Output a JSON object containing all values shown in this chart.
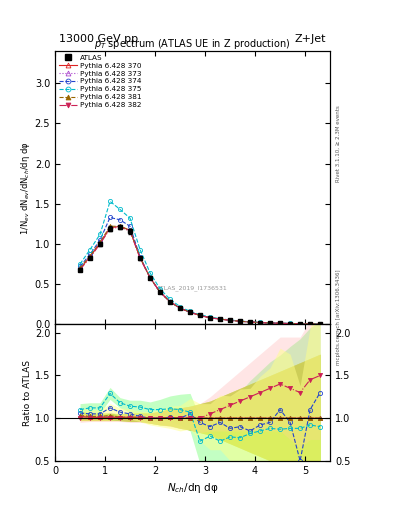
{
  "title_top": "13000 GeV pp",
  "title_right": "Z+Jet",
  "plot_title": "$p_T$ spectrum (ATLAS UE in Z production)",
  "xlabel": "$N_{ch}$/dη dφ",
  "ylabel_main": "1/N$_{ev}$ dN$_{ev}$/dN$_{ch}$/dη dφ",
  "ylabel_ratio": "Ratio to ATLAS",
  "right_label_top": "Rivet 3.1.10, ≥ 2.3M events",
  "right_label_bottom": "mcplots.cern.ch [arXiv:1306.3436]",
  "watermark": "ATLAS_2019_I1736531",
  "xlim": [
    0,
    5.5
  ],
  "ylim_main": [
    0,
    3.4
  ],
  "ylim_ratio": [
    0.5,
    2.1
  ],
  "yticks_main": [
    0,
    0.5,
    1.0,
    1.5,
    2.0,
    2.5,
    3.0
  ],
  "yticks_ratio": [
    0.5,
    1.0,
    1.5,
    2.0
  ],
  "atlas_x": [
    0.5,
    0.7,
    0.9,
    1.1,
    1.3,
    1.5,
    1.7,
    1.9,
    2.1,
    2.3,
    2.5,
    2.7,
    2.9,
    3.1,
    3.3,
    3.5,
    3.7,
    3.9,
    4.1,
    4.3,
    4.5,
    4.7,
    4.9,
    5.1,
    5.3
  ],
  "atlas_y": [
    0.68,
    0.83,
    1.0,
    1.19,
    1.21,
    1.16,
    0.82,
    0.58,
    0.4,
    0.28,
    0.2,
    0.15,
    0.11,
    0.08,
    0.065,
    0.05,
    0.038,
    0.028,
    0.021,
    0.016,
    0.012,
    0.009,
    0.007,
    0.005,
    0.004
  ],
  "atlas_yerr": [
    0.02,
    0.02,
    0.02,
    0.03,
    0.03,
    0.03,
    0.02,
    0.02,
    0.01,
    0.01,
    0.01,
    0.008,
    0.007,
    0.006,
    0.005,
    0.004,
    0.003,
    0.003,
    0.002,
    0.002,
    0.001,
    0.001,
    0.001,
    0.001,
    0.001
  ],
  "series": [
    {
      "label": "Pythia 6.428 370",
      "color": "#dd2222",
      "marker": "^",
      "markersize": 3,
      "linestyle": "-",
      "filled": false,
      "band_color": "#ffff00",
      "band_alpha": 0.6,
      "x": [
        0.5,
        0.7,
        0.9,
        1.1,
        1.3,
        1.5,
        1.7,
        1.9,
        2.1,
        2.3,
        2.5,
        2.7,
        2.9,
        3.1,
        3.3,
        3.5,
        3.7,
        3.9,
        4.1,
        4.3,
        4.5,
        4.7,
        4.9,
        5.1,
        5.3
      ],
      "y": [
        0.69,
        0.84,
        1.01,
        1.2,
        1.22,
        1.17,
        0.83,
        0.58,
        0.4,
        0.28,
        0.2,
        0.15,
        0.11,
        0.08,
        0.065,
        0.05,
        0.038,
        0.028,
        0.021,
        0.016,
        0.012,
        0.009,
        0.007,
        0.005,
        0.004
      ],
      "ratio_y": [
        1.02,
        1.01,
        1.01,
        1.01,
        1.01,
        1.01,
        1.01,
        1.0,
        1.0,
        1.01,
        1.0,
        1.0,
        1.0,
        1.0,
        1.0,
        1.0,
        1.0,
        1.0,
        1.0,
        1.0,
        1.0,
        1.0,
        1.0,
        1.0,
        1.0
      ],
      "ratio_yerr": [
        0.05,
        0.04,
        0.04,
        0.04,
        0.04,
        0.05,
        0.05,
        0.06,
        0.08,
        0.1,
        0.12,
        0.14,
        0.17,
        0.2,
        0.25,
        0.3,
        0.35,
        0.4,
        0.45,
        0.5,
        0.55,
        0.6,
        0.65,
        0.7,
        0.75
      ]
    },
    {
      "label": "Pythia 6.428 373",
      "color": "#aa44cc",
      "marker": "^",
      "markersize": 3,
      "linestyle": ":",
      "filled": false,
      "band_color": "#00cc00",
      "band_alpha": 0.4,
      "x": [
        0.5,
        0.7,
        0.9,
        1.1,
        1.3,
        1.5,
        1.7,
        1.9,
        2.1,
        2.3,
        2.5,
        2.7,
        2.9,
        3.1,
        3.3,
        3.5,
        3.7,
        3.9,
        4.1,
        4.3,
        4.5,
        4.7,
        4.9,
        5.1,
        5.3
      ],
      "y": [
        0.7,
        0.85,
        1.02,
        1.21,
        1.22,
        1.17,
        0.83,
        0.58,
        0.4,
        0.28,
        0.2,
        0.15,
        0.11,
        0.08,
        0.065,
        0.05,
        0.038,
        0.028,
        0.021,
        0.016,
        0.012,
        0.009,
        0.007,
        0.005,
        0.004
      ],
      "ratio_y": [
        1.03,
        1.02,
        1.02,
        1.02,
        1.01,
        1.01,
        1.01,
        1.0,
        1.0,
        1.01,
        1.0,
        1.0,
        1.0,
        1.0,
        1.0,
        1.0,
        1.0,
        1.0,
        1.0,
        1.0,
        1.0,
        1.0,
        1.0,
        1.0,
        1.0
      ],
      "ratio_yerr": [
        0.05,
        0.04,
        0.04,
        0.04,
        0.04,
        0.05,
        0.05,
        0.06,
        0.08,
        0.1,
        0.12,
        0.14,
        0.17,
        0.2,
        0.25,
        0.3,
        0.35,
        0.4,
        0.45,
        0.5,
        0.55,
        0.6,
        0.65,
        0.7,
        0.75
      ]
    },
    {
      "label": "Pythia 6.428 374",
      "color": "#2244cc",
      "marker": "o",
      "markersize": 3,
      "linestyle": "--",
      "filled": false,
      "band_color": "#ffff88",
      "band_alpha": 0.5,
      "x": [
        0.5,
        0.7,
        0.9,
        1.1,
        1.3,
        1.5,
        1.7,
        1.9,
        2.1,
        2.3,
        2.5,
        2.7,
        2.9,
        3.1,
        3.3,
        3.5,
        3.7,
        3.9,
        4.1,
        4.3,
        4.5,
        4.7,
        4.9,
        5.1,
        5.3
      ],
      "y": [
        0.72,
        0.87,
        1.05,
        1.33,
        1.3,
        1.22,
        0.84,
        0.58,
        0.4,
        0.28,
        0.2,
        0.15,
        0.11,
        0.08,
        0.065,
        0.05,
        0.038,
        0.028,
        0.021,
        0.016,
        0.012,
        0.009,
        0.007,
        0.005,
        0.004
      ],
      "ratio_y": [
        1.06,
        1.05,
        1.05,
        1.12,
        1.07,
        1.05,
        1.02,
        1.0,
        1.0,
        1.01,
        1.0,
        1.05,
        0.95,
        0.9,
        0.95,
        0.88,
        0.9,
        0.85,
        0.92,
        0.95,
        1.1,
        0.95,
        0.5,
        1.1,
        1.3
      ],
      "ratio_yerr": [
        0.06,
        0.05,
        0.05,
        0.05,
        0.05,
        0.06,
        0.06,
        0.08,
        0.1,
        0.13,
        0.15,
        0.18,
        0.22,
        0.27,
        0.32,
        0.38,
        0.44,
        0.5,
        0.57,
        0.64,
        0.72,
        0.8,
        0.88,
        0.96,
        1.04
      ]
    },
    {
      "label": "Pythia 6.428 375",
      "color": "#00bbcc",
      "marker": "o",
      "markersize": 3,
      "linestyle": "--",
      "filled": false,
      "band_color": "#88ff88",
      "band_alpha": 0.5,
      "x": [
        0.5,
        0.7,
        0.9,
        1.1,
        1.3,
        1.5,
        1.7,
        1.9,
        2.1,
        2.3,
        2.5,
        2.7,
        2.9,
        3.1,
        3.3,
        3.5,
        3.7,
        3.9,
        4.1,
        4.3,
        4.5,
        4.7,
        4.9,
        5.1,
        5.3
      ],
      "y": [
        0.75,
        0.93,
        1.12,
        1.53,
        1.43,
        1.32,
        0.93,
        0.64,
        0.44,
        0.31,
        0.22,
        0.16,
        0.12,
        0.09,
        0.07,
        0.053,
        0.04,
        0.03,
        0.022,
        0.017,
        0.013,
        0.01,
        0.007,
        0.006,
        0.004
      ],
      "ratio_y": [
        1.1,
        1.12,
        1.12,
        1.29,
        1.18,
        1.14,
        1.13,
        1.1,
        1.1,
        1.11,
        1.1,
        1.07,
        0.73,
        0.79,
        0.73,
        0.78,
        0.77,
        0.82,
        0.85,
        0.88,
        0.87,
        0.88,
        0.88,
        0.92,
        0.9
      ],
      "ratio_yerr": [
        0.07,
        0.06,
        0.06,
        0.07,
        0.06,
        0.07,
        0.08,
        0.09,
        0.12,
        0.15,
        0.18,
        0.22,
        0.27,
        0.33,
        0.4,
        0.47,
        0.54,
        0.62,
        0.7,
        0.78,
        0.87,
        0.96,
        1.05,
        1.14,
        1.23
      ]
    },
    {
      "label": "Pythia 6.428 381",
      "color": "#996600",
      "marker": "^",
      "markersize": 3,
      "linestyle": "--",
      "filled": true,
      "band_color": "#ffcc44",
      "band_alpha": 0.4,
      "x": [
        0.5,
        0.7,
        0.9,
        1.1,
        1.3,
        1.5,
        1.7,
        1.9,
        2.1,
        2.3,
        2.5,
        2.7,
        2.9,
        3.1,
        3.3,
        3.5,
        3.7,
        3.9,
        4.1,
        4.3,
        4.5,
        4.7,
        4.9,
        5.1,
        5.3
      ],
      "y": [
        0.7,
        0.85,
        1.02,
        1.22,
        1.22,
        1.17,
        0.83,
        0.58,
        0.4,
        0.28,
        0.2,
        0.15,
        0.11,
        0.08,
        0.065,
        0.05,
        0.038,
        0.028,
        0.021,
        0.016,
        0.012,
        0.009,
        0.007,
        0.005,
        0.004
      ],
      "ratio_y": [
        1.03,
        1.02,
        1.02,
        1.03,
        1.01,
        1.01,
        1.01,
        1.0,
        1.0,
        1.01,
        1.0,
        1.0,
        1.0,
        1.0,
        1.0,
        1.0,
        1.0,
        1.0,
        1.0,
        1.0,
        1.0,
        1.0,
        1.0,
        1.0,
        1.0
      ],
      "ratio_yerr": [
        0.05,
        0.04,
        0.04,
        0.04,
        0.04,
        0.05,
        0.05,
        0.06,
        0.08,
        0.1,
        0.12,
        0.14,
        0.17,
        0.2,
        0.25,
        0.3,
        0.35,
        0.4,
        0.45,
        0.5,
        0.55,
        0.6,
        0.65,
        0.7,
        0.75
      ]
    },
    {
      "label": "Pythia 6.428 382",
      "color": "#cc2255",
      "marker": "v",
      "markersize": 3,
      "linestyle": "-.",
      "filled": true,
      "band_color": "#ffaaaa",
      "band_alpha": 0.3,
      "x": [
        0.5,
        0.7,
        0.9,
        1.1,
        1.3,
        1.5,
        1.7,
        1.9,
        2.1,
        2.3,
        2.5,
        2.7,
        2.9,
        3.1,
        3.3,
        3.5,
        3.7,
        3.9,
        4.1,
        4.3,
        4.5,
        4.7,
        4.9,
        5.1,
        5.3
      ],
      "y": [
        0.68,
        0.83,
        1.0,
        1.19,
        1.21,
        1.16,
        0.82,
        0.58,
        0.4,
        0.28,
        0.2,
        0.15,
        0.11,
        0.08,
        0.065,
        0.05,
        0.038,
        0.028,
        0.021,
        0.016,
        0.012,
        0.009,
        0.007,
        0.005,
        0.004
      ],
      "ratio_y": [
        1.0,
        1.0,
        1.0,
        1.0,
        1.0,
        1.0,
        1.0,
        1.0,
        1.0,
        1.0,
        1.0,
        1.0,
        1.0,
        1.05,
        1.1,
        1.15,
        1.2,
        1.25,
        1.3,
        1.35,
        1.4,
        1.35,
        1.3,
        1.45,
        1.5
      ],
      "ratio_yerr": [
        0.05,
        0.04,
        0.04,
        0.04,
        0.04,
        0.05,
        0.05,
        0.06,
        0.08,
        0.1,
        0.12,
        0.14,
        0.17,
        0.2,
        0.25,
        0.3,
        0.35,
        0.4,
        0.45,
        0.5,
        0.55,
        0.6,
        0.65,
        0.7,
        0.75
      ]
    }
  ]
}
